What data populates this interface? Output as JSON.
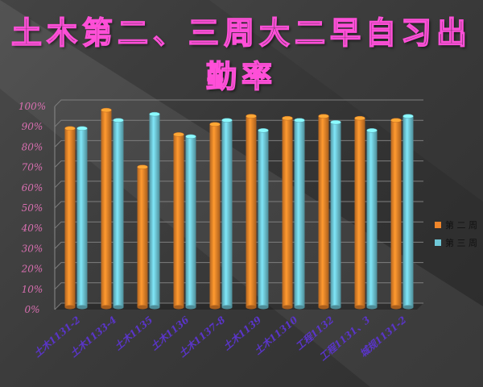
{
  "chart_data": {
    "type": "bar",
    "title": "土木第二、三周大二早自习出勤率",
    "categories": [
      "土木1131-2",
      "土木1133-4",
      "土木1135",
      "土木1136",
      "土木1137-8",
      "土木1139",
      "土木11310",
      "工程1132",
      "工程1131、3",
      "城规1131-2"
    ],
    "series": [
      {
        "name": "第 二 周",
        "values": [
          88,
          97,
          69,
          85,
          90,
          94,
          93,
          94,
          93,
          92
        ],
        "color": "#f0862a"
      },
      {
        "name": "第 三 周",
        "values": [
          88,
          92,
          95,
          84,
          92,
          87,
          92,
          91,
          87,
          94
        ],
        "color": "#6fc8d8"
      }
    ],
    "y_ticks": [
      "0%",
      "10%",
      "20%",
      "30%",
      "40%",
      "50%",
      "60%",
      "70%",
      "80%",
      "90%",
      "100%"
    ],
    "ylim": [
      0,
      100
    ],
    "grid": true,
    "legend_position": "right"
  }
}
